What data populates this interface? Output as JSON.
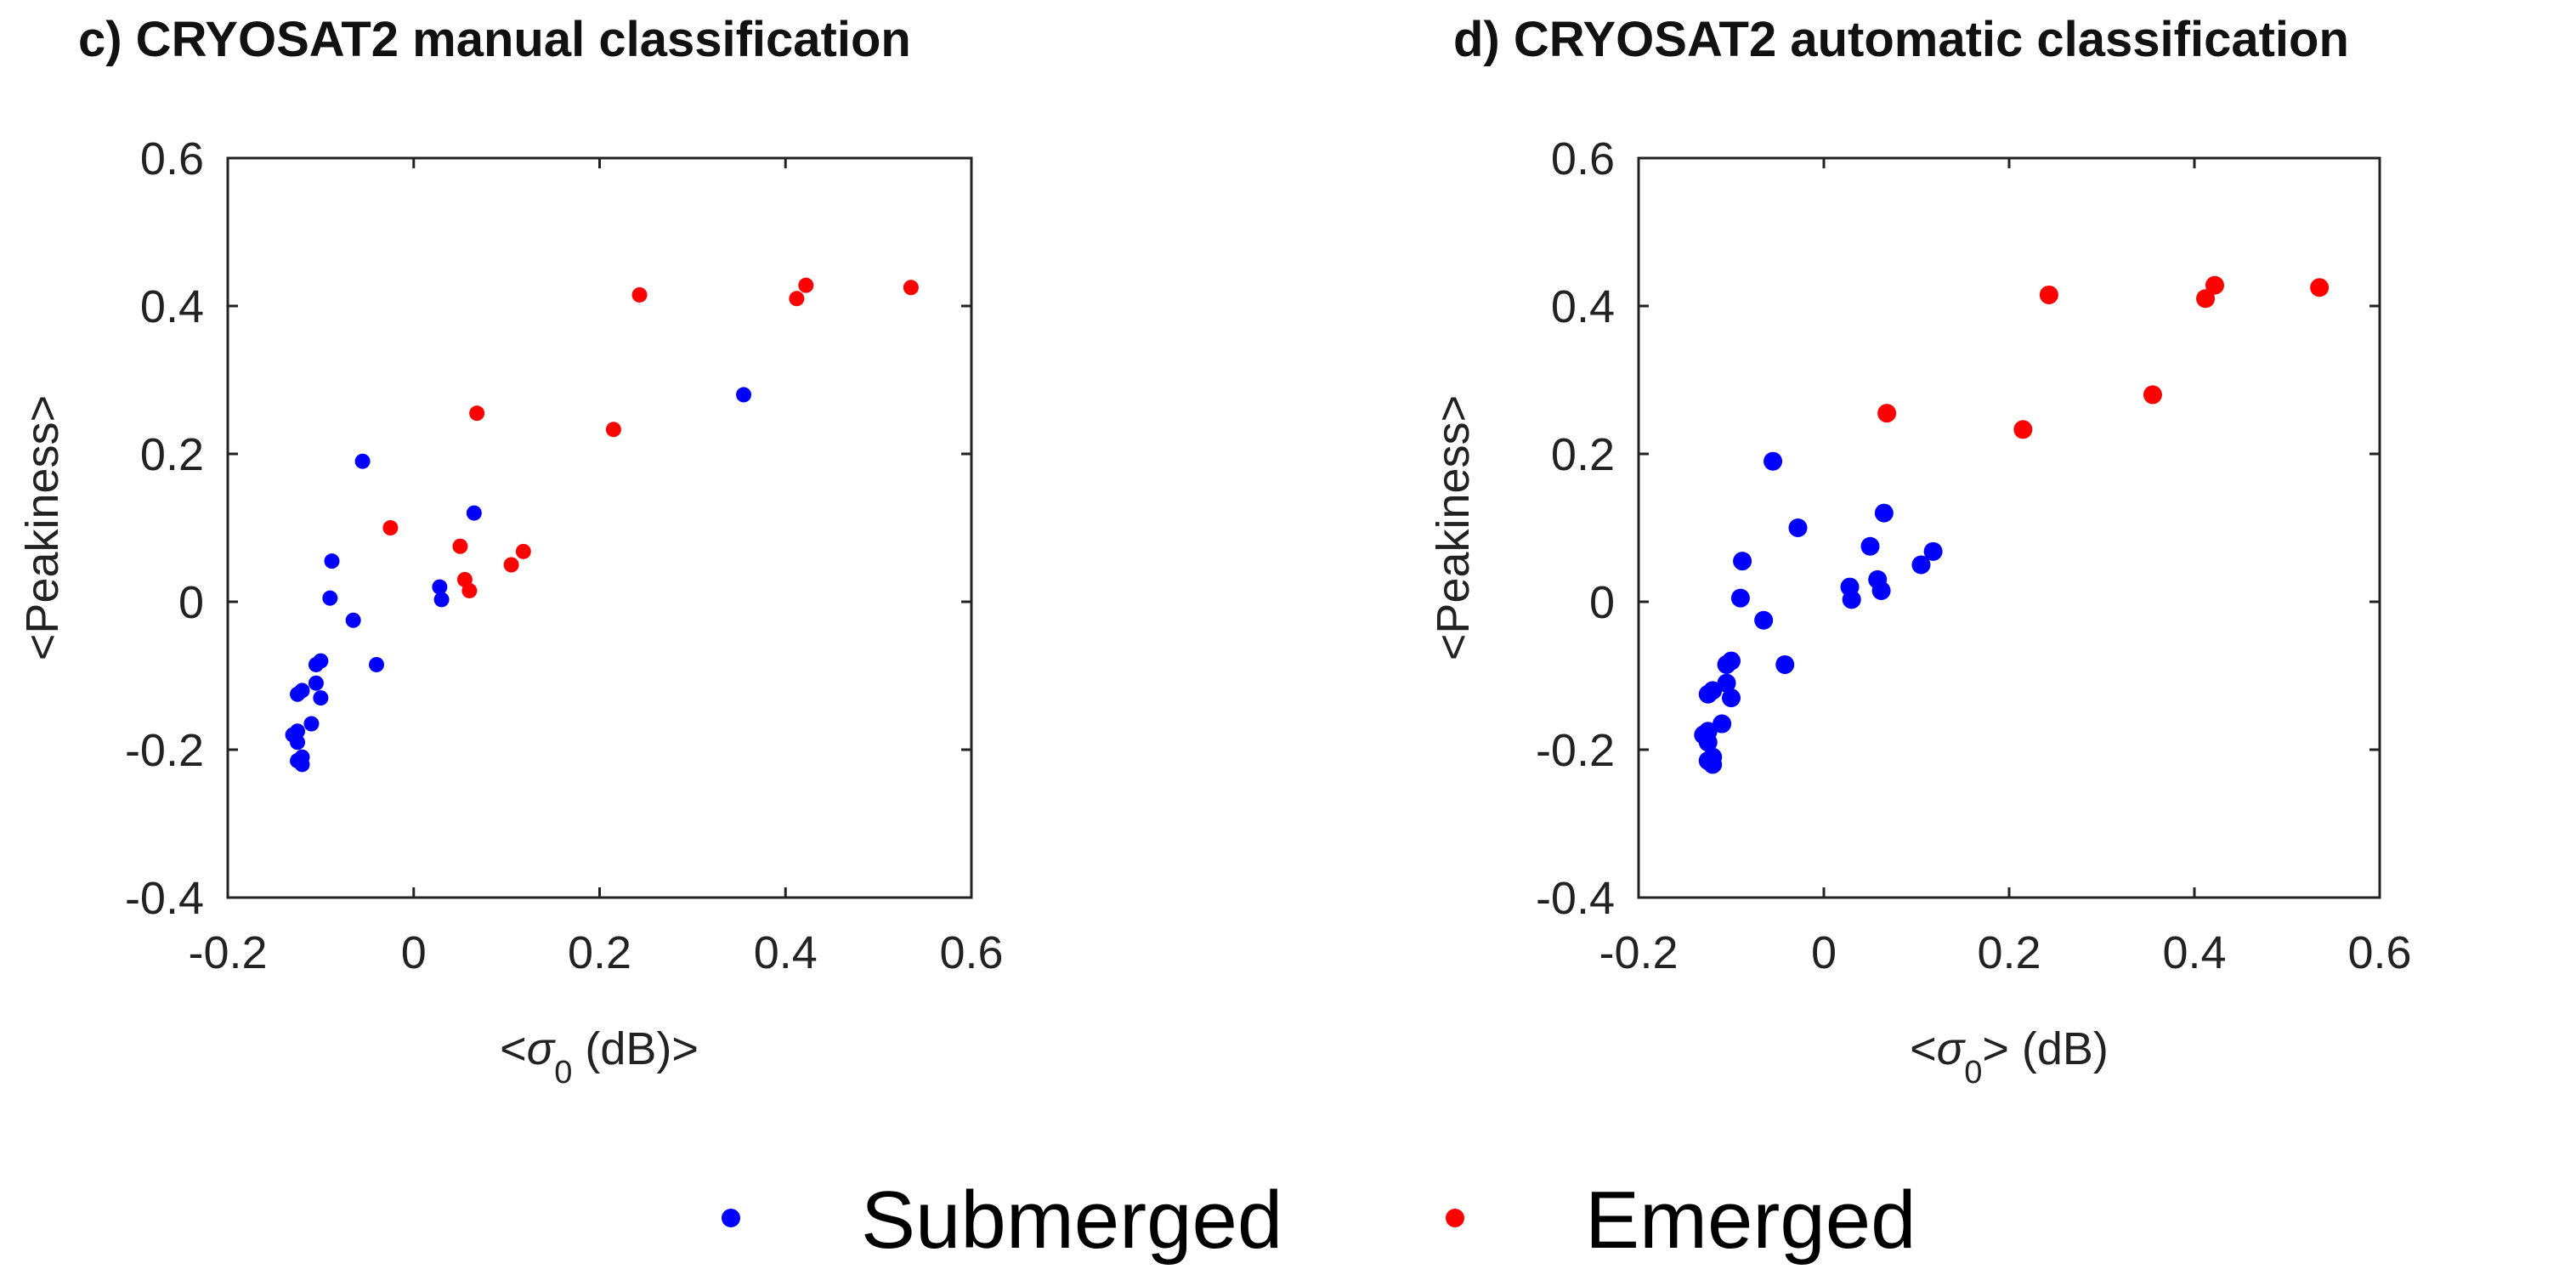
{
  "colors": {
    "submerged": "#0000ff",
    "emerged": "#ff0000",
    "axis": "#222222"
  },
  "legend": {
    "items": [
      {
        "label": "Submerged",
        "color": "#0000ff",
        "key": "submerged"
      },
      {
        "label": "Emerged",
        "color": "#ff0000",
        "key": "emerged"
      }
    ]
  },
  "chart_data": [
    {
      "type": "scatter",
      "title": "c) CRYOSAT2 manual classification",
      "xlabel": {
        "prefix": "<",
        "symbol": "σ",
        "subscript": "0",
        "suffix": " (dB)>"
      },
      "ylabel": "<Peakiness>",
      "xlim": [
        -0.2,
        0.6
      ],
      "ylim": [
        -0.4,
        0.6
      ],
      "xticks": [
        "-0.2",
        "0",
        "0.2",
        "0.4",
        "0.6"
      ],
      "yticks": [
        "-0.4",
        "-0.2",
        "0",
        "0.2",
        "0.4",
        "0.6"
      ],
      "series": [
        {
          "name": "Submerged",
          "color": "#0000ff",
          "points": [
            [
              -0.055,
              0.19
            ],
            [
              -0.088,
              0.055
            ],
            [
              -0.09,
              0.005
            ],
            [
              -0.065,
              -0.025
            ],
            [
              -0.04,
              -0.085
            ],
            [
              -0.1,
              -0.08
            ],
            [
              -0.105,
              -0.085
            ],
            [
              -0.105,
              -0.11
            ],
            [
              -0.1,
              -0.13
            ],
            [
              -0.12,
              -0.12
            ],
            [
              -0.125,
              -0.125
            ],
            [
              -0.11,
              -0.165
            ],
            [
              -0.125,
              -0.175
            ],
            [
              -0.13,
              -0.18
            ],
            [
              -0.125,
              -0.19
            ],
            [
              -0.12,
              -0.21
            ],
            [
              -0.125,
              -0.215
            ],
            [
              -0.12,
              -0.22
            ],
            [
              0.028,
              0.02
            ],
            [
              0.03,
              0.003
            ],
            [
              0.065,
              0.12
            ],
            [
              0.355,
              0.28
            ]
          ]
        },
        {
          "name": "Emerged",
          "color": "#ff0000",
          "points": [
            [
              -0.025,
              0.1
            ],
            [
              0.05,
              0.075
            ],
            [
              0.055,
              0.03
            ],
            [
              0.06,
              0.015
            ],
            [
              0.068,
              0.255
            ],
            [
              0.105,
              0.05
            ],
            [
              0.118,
              0.068
            ],
            [
              0.215,
              0.233
            ],
            [
              0.243,
              0.415
            ],
            [
              0.412,
              0.41
            ],
            [
              0.422,
              0.428
            ],
            [
              0.535,
              0.425
            ]
          ]
        }
      ]
    },
    {
      "type": "scatter",
      "title": "d) CRYOSAT2 automatic classification",
      "xlabel": {
        "prefix": "<",
        "symbol": "σ",
        "subscript": "0",
        "suffix": "> (dB)"
      },
      "ylabel": "<Peakiness>",
      "xlim": [
        -0.2,
        0.6
      ],
      "ylim": [
        -0.4,
        0.6
      ],
      "xticks": [
        "-0.2",
        "0",
        "0.2",
        "0.4",
        "0.6"
      ],
      "yticks": [
        "-0.4",
        "-0.2",
        "0",
        "0.2",
        "0.4",
        "0.6"
      ],
      "series": [
        {
          "name": "Submerged",
          "color": "#0000ff",
          "points": [
            [
              -0.055,
              0.19
            ],
            [
              -0.088,
              0.055
            ],
            [
              -0.09,
              0.005
            ],
            [
              -0.065,
              -0.025
            ],
            [
              -0.028,
              0.1
            ],
            [
              -0.042,
              -0.085
            ],
            [
              -0.1,
              -0.08
            ],
            [
              -0.105,
              -0.085
            ],
            [
              -0.105,
              -0.11
            ],
            [
              -0.1,
              -0.13
            ],
            [
              -0.12,
              -0.12
            ],
            [
              -0.125,
              -0.125
            ],
            [
              -0.11,
              -0.165
            ],
            [
              -0.125,
              -0.175
            ],
            [
              -0.13,
              -0.18
            ],
            [
              -0.125,
              -0.19
            ],
            [
              -0.12,
              -0.21
            ],
            [
              -0.125,
              -0.215
            ],
            [
              -0.12,
              -0.22
            ],
            [
              0.028,
              0.02
            ],
            [
              0.03,
              0.003
            ],
            [
              0.05,
              0.075
            ],
            [
              0.058,
              0.03
            ],
            [
              0.062,
              0.015
            ],
            [
              0.065,
              0.12
            ],
            [
              0.105,
              0.05
            ],
            [
              0.118,
              0.068
            ]
          ]
        },
        {
          "name": "Emerged",
          "color": "#ff0000",
          "points": [
            [
              0.068,
              0.255
            ],
            [
              0.215,
              0.233
            ],
            [
              0.243,
              0.415
            ],
            [
              0.355,
              0.28
            ],
            [
              0.412,
              0.41
            ],
            [
              0.422,
              0.428
            ],
            [
              0.535,
              0.425
            ]
          ]
        }
      ]
    }
  ]
}
